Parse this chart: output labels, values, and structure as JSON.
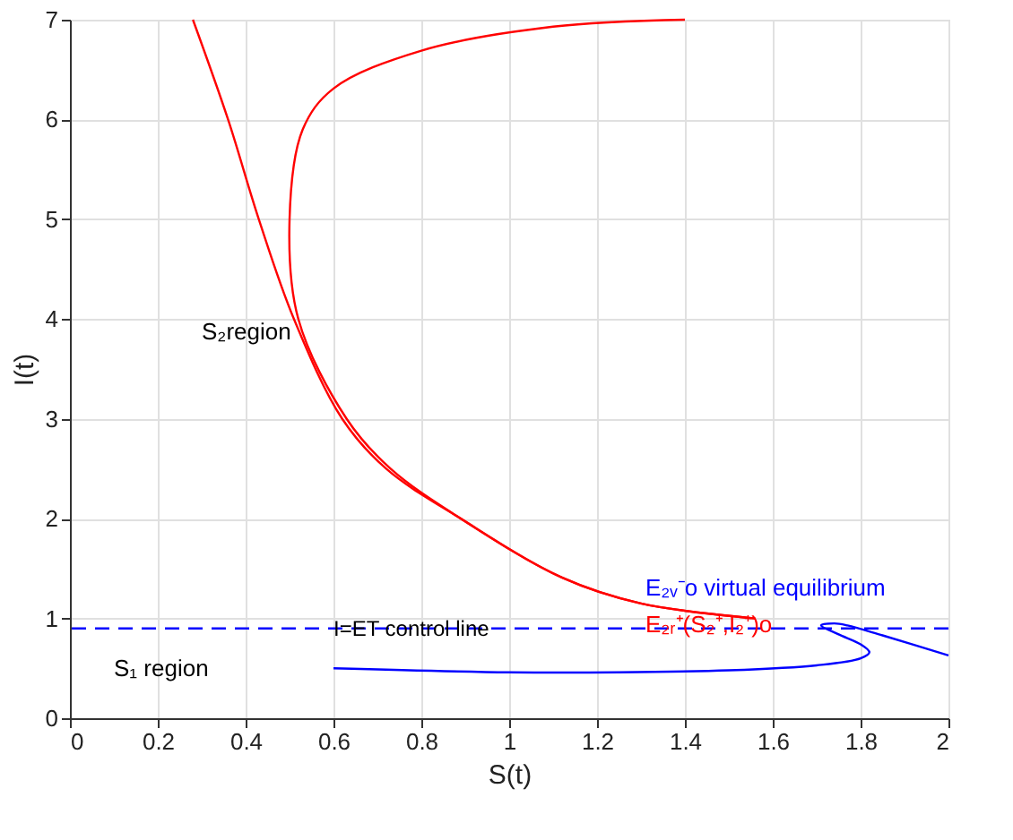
{
  "chart_data": {
    "type": "line",
    "xlabel": "S(t)",
    "ylabel": "I(t)",
    "xlim": [
      0,
      2
    ],
    "xticks": [
      0,
      0.2,
      0.4,
      0.6,
      0.8,
      1,
      1.2,
      1.4,
      1.6,
      1.8,
      2
    ],
    "ylim": [
      0,
      7
    ],
    "yticks": [
      0,
      1,
      2,
      3,
      4,
      5,
      6,
      7
    ],
    "grid": true,
    "line_style": "solid",
    "marker": "none",
    "series": [
      {
        "color": "#ff0000",
        "x": [
          0.28,
          0.36,
          0.43,
          0.51,
          0.62,
          0.72,
          0.89,
          1.12,
          1.3,
          1.56
        ],
        "values": [
          7.0,
          6,
          5,
          4,
          3,
          2.5,
          2,
          1.41,
          1.15,
          1.0
        ]
      },
      {
        "color": "#ff0000",
        "x": [
          1.4,
          1.1,
          0.8,
          0.6,
          0.53,
          0.5,
          0.52,
          0.63,
          0.73,
          0.89,
          1.12,
          1.3,
          1.56
        ],
        "values": [
          7.0,
          6.93,
          6.69,
          6.31,
          5.9,
          5.0,
          4.0,
          3.0,
          2.5,
          2.0,
          1.41,
          1.15,
          1.0
        ]
      },
      {
        "color": "#0000ff",
        "x": [
          0.6,
          1.0,
          1.25,
          1.5,
          1.7,
          1.8,
          1.82,
          1.8,
          1.75,
          1.71,
          1.74,
          1.77,
          1.85,
          2.0
        ],
        "values": [
          0.5,
          0.46,
          0.46,
          0.48,
          0.53,
          0.6,
          0.66,
          0.74,
          0.84,
          0.93,
          0.95,
          0.93,
          0.83,
          0.63
        ]
      }
    ],
    "ref_lines": [
      {
        "axis": "y",
        "value": 0.9,
        "label": "I=ET control line",
        "color": "#0000ff",
        "line_style": "dashed"
      }
    ],
    "annotations": [
      "S₂region",
      "S₁ region",
      "E₂ᵥ⁻o virtual equilibrium",
      "E₂ᵣ⁺(S₂⁺,I₂⁺)o"
    ]
  }
}
